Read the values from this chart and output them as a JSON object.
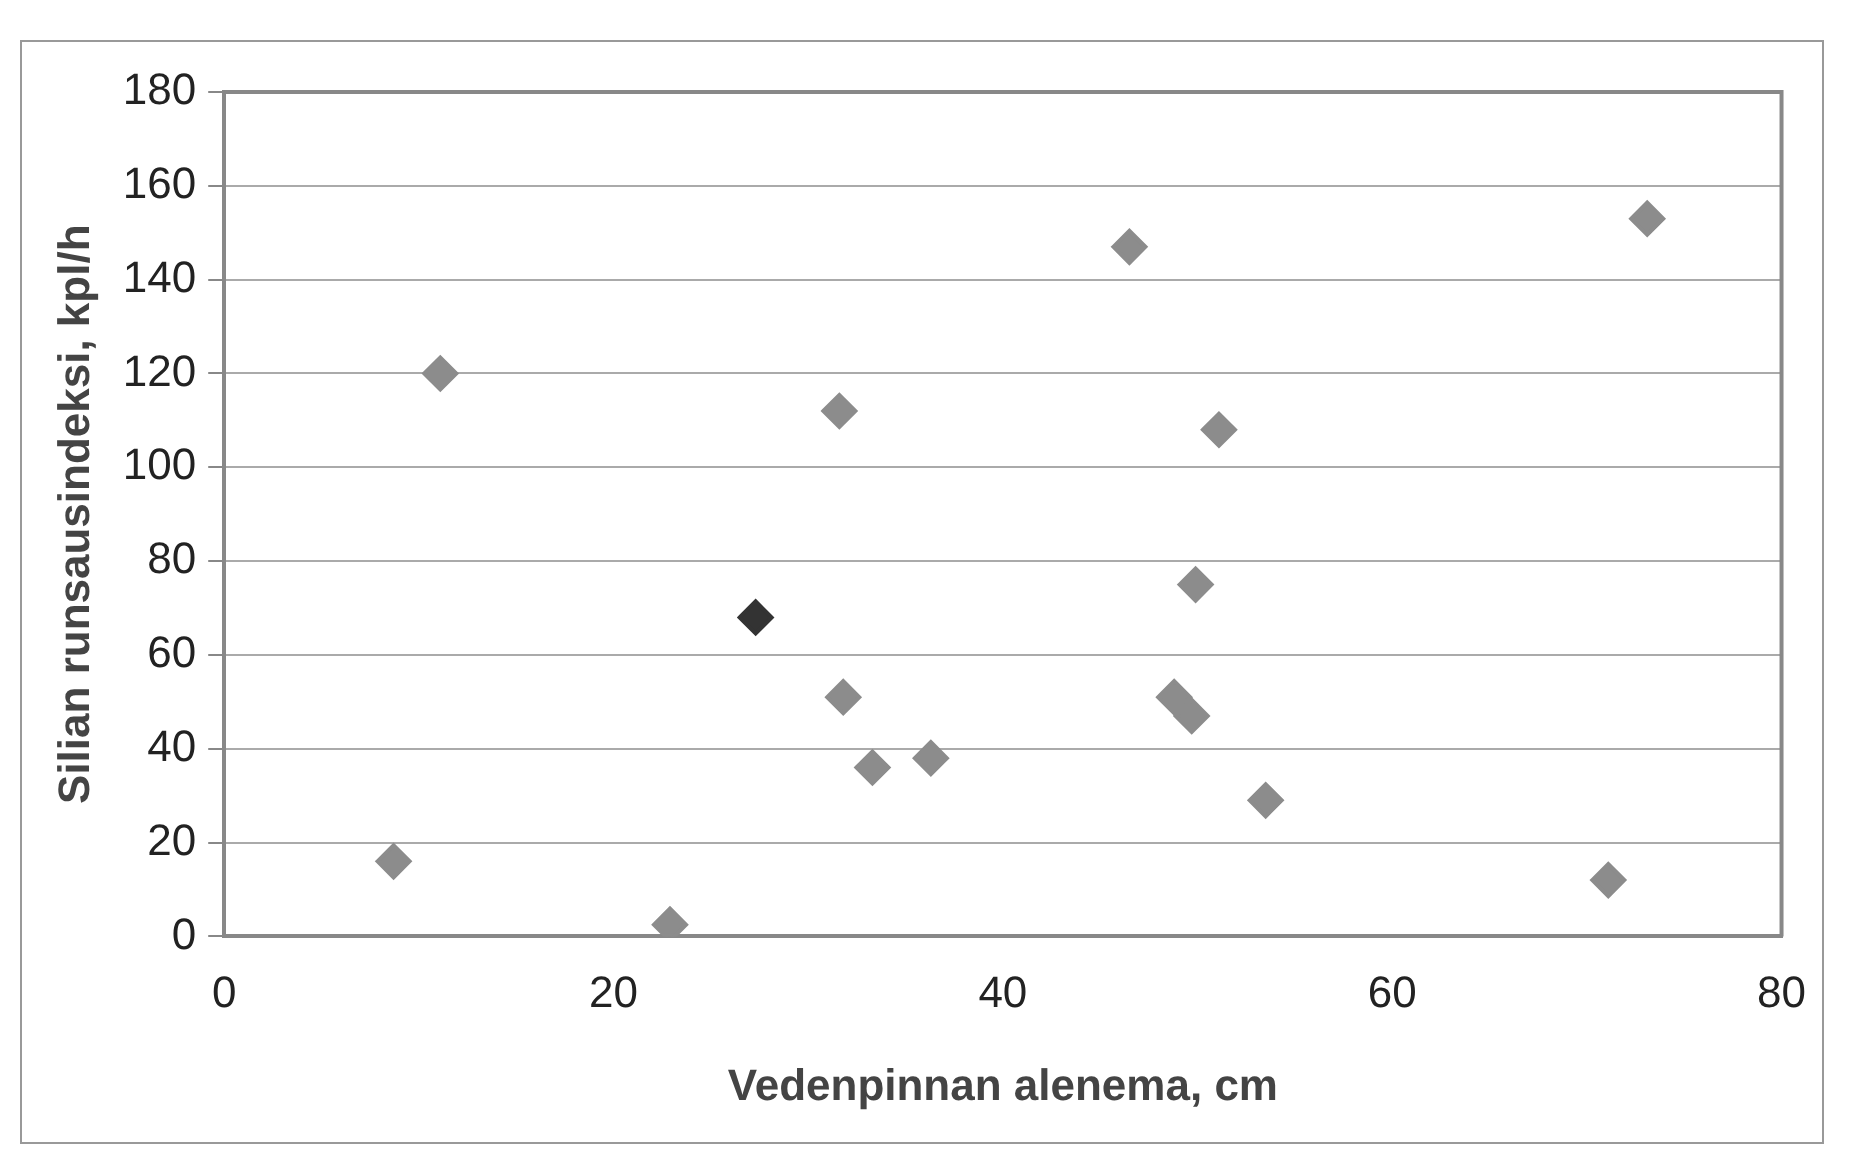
{
  "chart_data": {
    "type": "scatter",
    "xlabel": "Vedenpinnan alenema, cm",
    "ylabel": "Silian runsausindeksi, kpl/h",
    "x": [
      8.7,
      11.1,
      22.9,
      27.3,
      31.6,
      31.8,
      33.3,
      36.3,
      46.5,
      48.8,
      49.7,
      49.9,
      51.1,
      53.5,
      71.1,
      73.1
    ],
    "values": [
      16,
      120,
      2.5,
      68,
      112,
      51,
      36,
      38,
      147,
      51,
      47,
      75,
      108,
      29,
      12,
      153
    ],
    "colors": [
      "#8c8c8c",
      "#8c8c8c",
      "#8c8c8c",
      "#333333",
      "#8c8c8c",
      "#8c8c8c",
      "#8c8c8c",
      "#8c8c8c",
      "#8c8c8c",
      "#8c8c8c",
      "#8c8c8c",
      "#8c8c8c",
      "#8c8c8c",
      "#8c8c8c",
      "#8c8c8c",
      "#8c8c8c"
    ],
    "xlim": [
      0,
      80
    ],
    "xticks": [
      0,
      20,
      40,
      60,
      80
    ],
    "ylim": [
      0,
      180
    ],
    "yticks": [
      0,
      20,
      40,
      60,
      80,
      100,
      120,
      140,
      160,
      180
    ],
    "grid": "y",
    "marker": "diamond",
    "legend": false
  }
}
